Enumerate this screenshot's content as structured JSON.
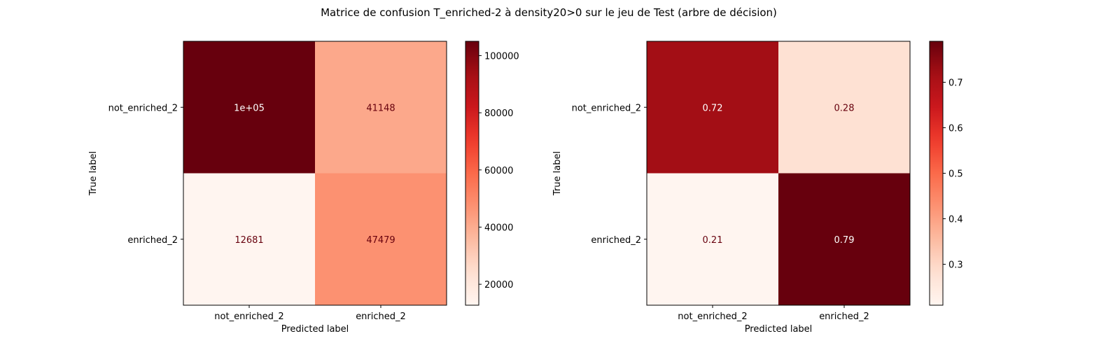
{
  "figure": {
    "suptitle": "Matrice de confusion T_enriched-2 à density20>0 sur le jeu de Test (arbre de décision)"
  },
  "chart_data": [
    {
      "type": "heatmap",
      "colormap": "Reds",
      "rows": [
        "not_enriched_2",
        "enriched_2"
      ],
      "cols": [
        "not_enriched_2",
        "enriched_2"
      ],
      "values": [
        [
          105000,
          41148
        ],
        [
          12681,
          47479
        ]
      ],
      "cell_labels": [
        [
          "1e+05",
          "41148"
        ],
        [
          "12681",
          "47479"
        ]
      ],
      "xlabel": "Predicted label",
      "ylabel": "True label",
      "colorbar": {
        "min": 12681,
        "max": 105000,
        "ticks": [
          20000,
          40000,
          60000,
          80000,
          100000
        ],
        "tick_labels": [
          "20000",
          "40000",
          "60000",
          "80000",
          "100000"
        ]
      }
    },
    {
      "type": "heatmap",
      "colormap": "Reds",
      "rows": [
        "not_enriched_2",
        "enriched_2"
      ],
      "cols": [
        "not_enriched_2",
        "enriched_2"
      ],
      "values": [
        [
          0.72,
          0.28
        ],
        [
          0.21,
          0.79
        ]
      ],
      "cell_labels": [
        [
          "0.72",
          "0.28"
        ],
        [
          "0.21",
          "0.79"
        ]
      ],
      "xlabel": "Predicted label",
      "ylabel": "True label",
      "colorbar": {
        "min": 0.21,
        "max": 0.79,
        "ticks": [
          0.3,
          0.4,
          0.5,
          0.6,
          0.7
        ],
        "tick_labels": [
          "0.3",
          "0.4",
          "0.5",
          "0.6",
          "0.7"
        ]
      }
    }
  ]
}
